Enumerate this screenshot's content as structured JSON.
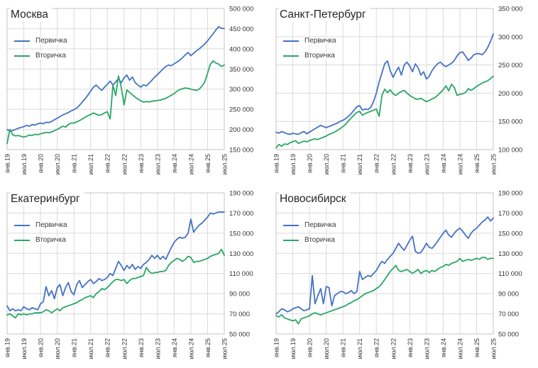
{
  "page": {
    "background": "#ffffff"
  },
  "colors": {
    "primary_series": "#4472C4",
    "secondary_series": "#2AA667",
    "grid": "#DADADA",
    "plot_border": "#C6C6C6",
    "axis_text": "#333333",
    "title_text": "#262626"
  },
  "chart_data": [
    {
      "type": "line",
      "title": "Москва",
      "x_tick_labels": [
        "янв.19",
        "июл.19",
        "янв.20",
        "июл.20",
        "янв.21",
        "июл.21",
        "янв.22",
        "июл.22",
        "янв.23",
        "июл.23",
        "янв.24",
        "июл.24",
        "янв.25",
        "июл.25"
      ],
      "x_points_monthly": 79,
      "ylim": [
        150000,
        500000
      ],
      "y_tick_step": 50000,
      "y_tick_labels": [
        "500 000",
        "450 000",
        "400 000",
        "350 000",
        "300 000",
        "250 000",
        "200 000",
        "150 000"
      ],
      "grid": true,
      "legend_position": "top-left-inside",
      "series": [
        {
          "name": "Первичка",
          "color": "#4472C4",
          "values": [
            200000,
            196000,
            197000,
            200000,
            203000,
            205000,
            207000,
            210000,
            208000,
            212000,
            211000,
            214000,
            216000,
            214000,
            218000,
            217000,
            220000,
            224000,
            228000,
            232000,
            236000,
            239000,
            242000,
            246000,
            249000,
            253000,
            260000,
            268000,
            276000,
            285000,
            295000,
            305000,
            310000,
            303000,
            297000,
            305000,
            312000,
            320000,
            310000,
            318000,
            326000,
            316000,
            328000,
            335000,
            322000,
            330000,
            316000,
            310000,
            305000,
            311000,
            308000,
            315000,
            322000,
            330000,
            336000,
            343000,
            350000,
            356000,
            360000,
            358000,
            363000,
            367000,
            372000,
            378000,
            385000,
            391000,
            383000,
            389000,
            395000,
            400000,
            406000,
            412000,
            420000,
            429000,
            437000,
            447000,
            455000,
            451000,
            450000
          ]
        },
        {
          "name": "Вторичка",
          "color": "#2AA667",
          "values": [
            165000,
            200000,
            187000,
            184000,
            185000,
            183000,
            181000,
            183000,
            186000,
            185000,
            188000,
            187000,
            189000,
            191000,
            193000,
            192000,
            194000,
            197000,
            200000,
            204000,
            208000,
            206000,
            212000,
            216000,
            216000,
            219000,
            222000,
            226000,
            230000,
            234000,
            237000,
            241000,
            238000,
            235000,
            237000,
            241000,
            244000,
            226000,
            310000,
            284000,
            333000,
            305000,
            261000,
            298000,
            292000,
            286000,
            280000,
            275000,
            271000,
            268000,
            269000,
            268000,
            270000,
            271000,
            272000,
            273000,
            275000,
            277000,
            281000,
            285000,
            289000,
            295000,
            299000,
            301000,
            303000,
            302000,
            300000,
            298000,
            297000,
            300000,
            308000,
            318000,
            340000,
            362000,
            370000,
            365000,
            362000,
            356000,
            360000
          ]
        }
      ]
    },
    {
      "type": "line",
      "title": "Санкт-Петербург",
      "x_tick_labels": [
        "янв.19",
        "июл.19",
        "янв.20",
        "июл.20",
        "янв.21",
        "июл.21",
        "янв.22",
        "июл.22",
        "янв.23",
        "июл.23",
        "янв.24",
        "июл.24",
        "янв.25",
        "июл.25"
      ],
      "x_points_monthly": 79,
      "ylim": [
        100000,
        350000
      ],
      "y_tick_step": 50000,
      "y_tick_labels": [
        "350 000",
        "300 000",
        "250 000",
        "200 000",
        "150 000",
        "100 000"
      ],
      "grid": true,
      "legend_position": "top-left-inside",
      "series": [
        {
          "name": "Первичка",
          "color": "#4472C4",
          "values": [
            131000,
            129000,
            132000,
            130000,
            128000,
            127000,
            129000,
            128000,
            127000,
            130000,
            132000,
            128000,
            131000,
            134000,
            137000,
            140000,
            143000,
            141000,
            139000,
            141000,
            143000,
            145000,
            147000,
            150000,
            152000,
            155000,
            159000,
            164000,
            170000,
            176000,
            178000,
            170000,
            172000,
            171000,
            175000,
            185000,
            200000,
            220000,
            236000,
            252000,
            257000,
            240000,
            228000,
            238000,
            246000,
            232000,
            250000,
            255000,
            248000,
            238000,
            252000,
            245000,
            232000,
            238000,
            225000,
            230000,
            240000,
            247000,
            252000,
            255000,
            250000,
            247000,
            250000,
            253000,
            258000,
            266000,
            272000,
            273000,
            266000,
            258000,
            262000,
            268000,
            270000,
            270000,
            268000,
            273000,
            281000,
            292000,
            305000
          ]
        },
        {
          "name": "Вторичка",
          "color": "#2AA667",
          "values": [
            103000,
            109000,
            106000,
            110000,
            109000,
            112000,
            114000,
            116000,
            111000,
            113000,
            115000,
            114000,
            116000,
            118000,
            119000,
            118000,
            120000,
            122000,
            124000,
            127000,
            129000,
            131000,
            134000,
            137000,
            141000,
            145000,
            151000,
            156000,
            161000,
            166000,
            168000,
            161000,
            164000,
            166000,
            168000,
            170000,
            172000,
            159000,
            196000,
            207000,
            201000,
            206000,
            199000,
            196000,
            200000,
            203000,
            205000,
            200000,
            196000,
            193000,
            190000,
            189000,
            191000,
            188000,
            185000,
            187000,
            190000,
            192000,
            196000,
            201000,
            206000,
            213000,
            204000,
            216000,
            210000,
            196000,
            198000,
            199000,
            201000,
            208000,
            205000,
            208000,
            212000,
            215000,
            218000,
            220000,
            222000,
            226000,
            230000
          ]
        }
      ]
    },
    {
      "type": "line",
      "title": "Екатеринбург",
      "x_tick_labels": [
        "янв.19",
        "июл.19",
        "янв.20",
        "июл.20",
        "янв.21",
        "июл.21",
        "янв.22",
        "июл.22",
        "янв.23",
        "июл.23",
        "янв.24",
        "июл.24",
        "янв.25",
        "июл.25"
      ],
      "x_points_monthly": 79,
      "ylim": [
        50000,
        190000
      ],
      "y_tick_step": 20000,
      "y_tick_labels": [
        "190 000",
        "170 000",
        "150 000",
        "130 000",
        "110 000",
        "90 000",
        "70 000",
        "50 000"
      ],
      "grid": true,
      "legend_position": "top-left-inside",
      "series": [
        {
          "name": "Первичка",
          "color": "#4472C4",
          "values": [
            78000,
            73000,
            75000,
            73000,
            74000,
            73000,
            77000,
            75000,
            74000,
            76000,
            75000,
            74000,
            80000,
            82000,
            97000,
            88000,
            93000,
            85000,
            96000,
            99000,
            88000,
            96000,
            101000,
            92000,
            89000,
            99000,
            103000,
            96000,
            99000,
            102000,
            104000,
            100000,
            102000,
            105000,
            103000,
            104000,
            106000,
            110000,
            108000,
            115000,
            122000,
            118000,
            113000,
            118000,
            115000,
            119000,
            114000,
            117000,
            115000,
            119000,
            121000,
            124000,
            128000,
            125000,
            128000,
            124000,
            127000,
            124000,
            130000,
            136000,
            141000,
            144000,
            146000,
            145000,
            146000,
            150000,
            164000,
            151000,
            155000,
            158000,
            160000,
            163000,
            166000,
            170000,
            169000,
            170000,
            171000,
            171000,
            171000
          ]
        },
        {
          "name": "Вторичка",
          "color": "#2AA667",
          "values": [
            69000,
            70000,
            68000,
            66000,
            70000,
            69000,
            70000,
            69000,
            70000,
            70000,
            71000,
            71000,
            71000,
            72000,
            74000,
            73000,
            71000,
            73000,
            75000,
            73000,
            76000,
            77000,
            78000,
            79000,
            80000,
            81000,
            83000,
            84000,
            86000,
            87000,
            88000,
            86000,
            90000,
            92000,
            95000,
            94000,
            96000,
            99000,
            102000,
            104000,
            104000,
            103000,
            104000,
            100000,
            103000,
            105000,
            105000,
            106000,
            107000,
            108000,
            116000,
            112000,
            110000,
            111000,
            111000,
            112000,
            112000,
            113000,
            118000,
            121000,
            123000,
            125000,
            124000,
            122000,
            124000,
            127000,
            126000,
            121000,
            122000,
            122000,
            123000,
            124000,
            125000,
            127000,
            128000,
            129000,
            130000,
            134000,
            128000
          ]
        }
      ]
    },
    {
      "type": "line",
      "title": "Новосибирск",
      "x_tick_labels": [
        "янв.19",
        "июл.19",
        "янв.20",
        "июл.20",
        "янв.21",
        "июл.21",
        "янв.22",
        "июл.22",
        "янв.23",
        "июл.23",
        "янв.24",
        "июл.24",
        "янв.25",
        "июл.25"
      ],
      "x_points_monthly": 79,
      "ylim": [
        50000,
        190000
      ],
      "y_tick_step": 20000,
      "y_tick_labels": [
        "190 000",
        "170 000",
        "150 000",
        "130 000",
        "110 000",
        "90 000",
        "70 000",
        "50 000"
      ],
      "grid": true,
      "legend_position": "top-left-inside",
      "series": [
        {
          "name": "Первичка",
          "color": "#4472C4",
          "values": [
            70000,
            72000,
            75000,
            74000,
            72000,
            73000,
            75000,
            76000,
            77000,
            75000,
            73000,
            74000,
            75000,
            108000,
            80000,
            88000,
            95000,
            80000,
            97000,
            96000,
            78000,
            88000,
            90000,
            92000,
            92000,
            90000,
            91000,
            93000,
            90000,
            92000,
            112000,
            104000,
            106000,
            108000,
            107000,
            110000,
            113000,
            118000,
            122000,
            120000,
            124000,
            127000,
            130000,
            135000,
            140000,
            136000,
            133000,
            138000,
            143000,
            147000,
            132000,
            130000,
            131000,
            135000,
            140000,
            136000,
            135000,
            138000,
            142000,
            146000,
            150000,
            153000,
            148000,
            146000,
            150000,
            153000,
            155000,
            152000,
            148000,
            145000,
            150000,
            153000,
            155000,
            158000,
            161000,
            163000,
            166000,
            162000,
            165000
          ]
        },
        {
          "name": "Вторичка",
          "color": "#2AA667",
          "values": [
            68000,
            67000,
            69000,
            66000,
            65000,
            64000,
            63000,
            64000,
            60000,
            65000,
            66000,
            67000,
            68000,
            70000,
            71000,
            70000,
            69000,
            70000,
            71000,
            72000,
            73000,
            74000,
            75000,
            76000,
            77000,
            78000,
            80000,
            81000,
            83000,
            84000,
            86000,
            88000,
            90000,
            91000,
            92000,
            93000,
            95000,
            97000,
            100000,
            104000,
            108000,
            112000,
            115000,
            118000,
            113000,
            112000,
            113000,
            114000,
            112000,
            110000,
            112000,
            114000,
            110000,
            112000,
            113000,
            111000,
            113000,
            112000,
            114000,
            116000,
            117000,
            119000,
            118000,
            120000,
            121000,
            122000,
            125000,
            122000,
            123000,
            124000,
            123000,
            124000,
            125000,
            124000,
            126000,
            126000,
            124000,
            125000,
            125000
          ]
        }
      ]
    }
  ]
}
